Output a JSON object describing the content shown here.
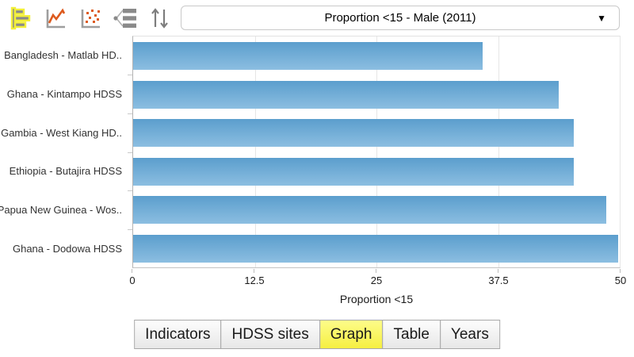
{
  "toolbar": {
    "buttons": [
      {
        "name": "horizontal-bar-chart",
        "active": true
      },
      {
        "name": "line-chart",
        "active": false
      },
      {
        "name": "scatter-plot",
        "active": false
      },
      {
        "name": "legend",
        "active": false
      },
      {
        "name": "sort",
        "active": false
      }
    ],
    "dropdown": {
      "value": "Proportion <15 - Male (2011)",
      "caret": "▼"
    }
  },
  "chart_data": {
    "type": "bar",
    "orientation": "horizontal",
    "title": "Proportion <15 - Male (2011)",
    "categories": [
      "Bangladesh - Matlab HD..",
      "Ghana - Kintampo HDSS",
      "Gambia - West Kiang HD..",
      "Ethiopia - Butajira HDSS",
      "Papua New Guinea - Wos..",
      "Ghana - Dodowa HDSS"
    ],
    "values": [
      35.9,
      43.7,
      45.3,
      45.3,
      48.6,
      49.8
    ],
    "xlabel": "Proportion <15",
    "xlim": [
      0,
      50
    ],
    "xticks": [
      0,
      12.5,
      25,
      37.5,
      50
    ],
    "grid": true,
    "bar_color_top": "#5b9ecd",
    "bar_color_bottom": "#8cbee1"
  },
  "tabs": [
    {
      "label": "Indicators",
      "active": false
    },
    {
      "label": "HDSS sites",
      "active": false
    },
    {
      "label": "Graph",
      "active": true
    },
    {
      "label": "Table",
      "active": false
    },
    {
      "label": "Years",
      "active": false
    }
  ],
  "colors": {
    "bar_top": "#5b9ecd",
    "bar_bottom": "#8cbee1",
    "active_tab_bg": "#f8f24d",
    "icon_highlight_yellow": "#f2ef39",
    "icon_gray": "#8a8a8a",
    "icon_orange": "#dd5a1e",
    "gridline": "#e6e6e6"
  }
}
